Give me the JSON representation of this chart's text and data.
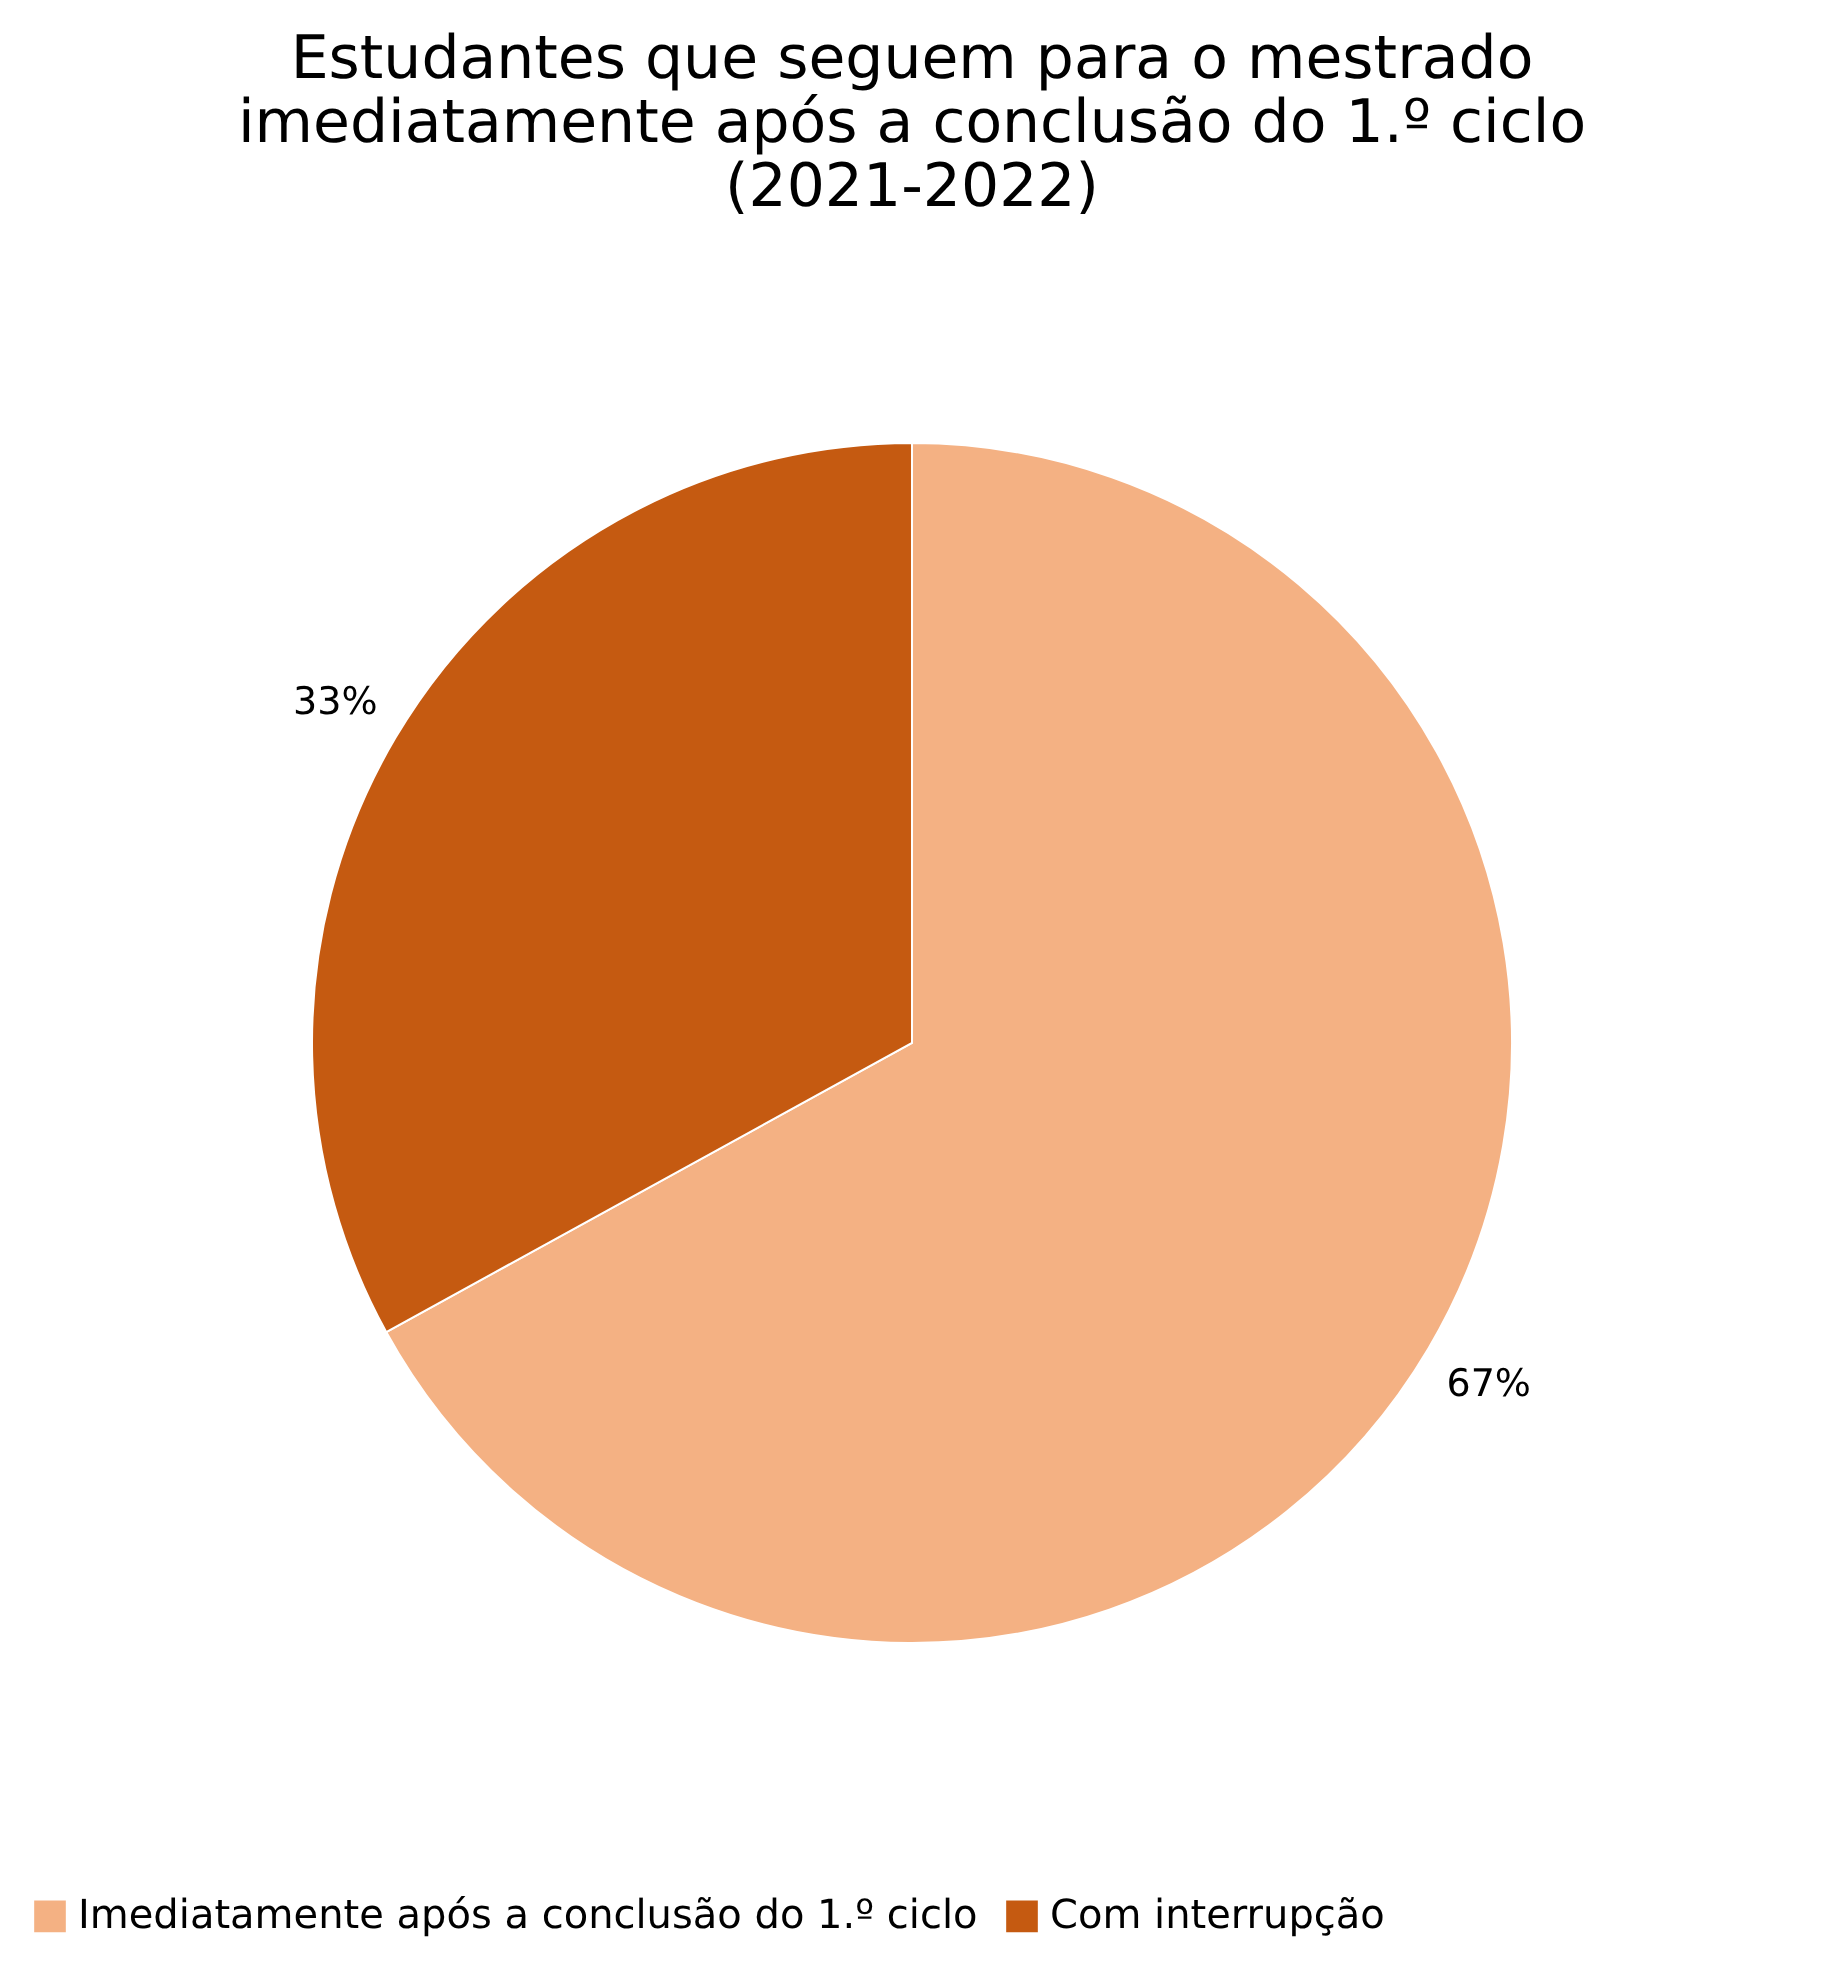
{
  "chart_data": {
    "type": "pie",
    "title": [
      "Estudantes que seguem para o mestrado",
      "imediatamente após a conclusão do 1.º ciclo",
      "(2021-2022)"
    ],
    "categories": [
      "Imediatamente após a conclusão do 1.º ciclo",
      "Com interrupção"
    ],
    "values": [
      67,
      33
    ],
    "colors": [
      "#f4b183",
      "#c55a11"
    ],
    "value_labels": [
      "67%",
      "33%"
    ],
    "legend": "bottom"
  }
}
